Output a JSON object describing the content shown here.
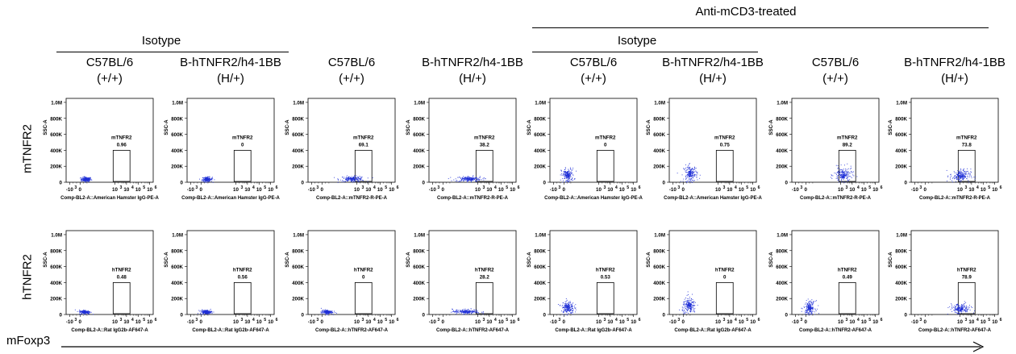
{
  "top_title": "Anti-mCD3-treated",
  "group_labels": [
    "Isotype",
    "Isotype"
  ],
  "column_headers": [
    {
      "strain": "C57BL/6",
      "genotype": "(+/+)"
    },
    {
      "strain": "B-hTNFR2/h4-1BB",
      "genotype": "(H/+)"
    },
    {
      "strain": "C57BL/6",
      "genotype": "(+/+)"
    },
    {
      "strain": "B-hTNFR2/h4-1BB",
      "genotype": "(H/+)"
    },
    {
      "strain": "C57BL/6",
      "genotype": "(+/+)"
    },
    {
      "strain": "B-hTNFR2/h4-1BB",
      "genotype": "(H/+)"
    },
    {
      "strain": "C57BL/6",
      "genotype": "(+/+)"
    },
    {
      "strain": "B-hTNFR2/h4-1BB",
      "genotype": "(H/+)"
    }
  ],
  "row_labels": [
    "mTNFR2",
    "hTNFR2"
  ],
  "x_axis_label": "mFoxp3",
  "colors": {
    "dots": "#1f2fd6",
    "axis": "#000000",
    "gate": "#000000"
  },
  "chart_data": {
    "type": "scatter",
    "ylabel": "SSC-A",
    "yticks": [
      "0",
      "200K",
      "400K",
      "600K",
      "800K",
      "1.0M"
    ],
    "xticks": [
      "-10",
      "0",
      "10",
      "10",
      "10",
      "10"
    ],
    "xtick_superscripts": [
      "3",
      "",
      "3",
      "4",
      "5",
      "6"
    ],
    "panels": [
      {
        "row": "mTNFR2",
        "gate": "mTNFR2",
        "value": "0.96",
        "xlabel": "Comp-BL2-A::American Hamster IgG-PE-A",
        "pop_x": 0.5,
        "pop_y": 40000,
        "spread_x": 0.45,
        "spread_y": 25000
      },
      {
        "row": "mTNFR2",
        "gate": "mTNFR2",
        "value": "0",
        "xlabel": "Comp-BL2-A::American Hamster IgG-PE-A",
        "pop_x": 0.5,
        "pop_y": 40000,
        "spread_x": 0.45,
        "spread_y": 25000
      },
      {
        "row": "mTNFR2",
        "gate": "mTNFR2",
        "value": "69.1",
        "xlabel": "Comp-BL2-A::mTNFR2-R-PE-A",
        "pop_x": 2.6,
        "pop_y": 45000,
        "spread_x": 1.1,
        "spread_y": 30000
      },
      {
        "row": "mTNFR2",
        "gate": "mTNFR2",
        "value": "38.2",
        "xlabel": "Comp-BL2-A::mTNFR2-R-PE-A",
        "pop_x": 2.2,
        "pop_y": 45000,
        "spread_x": 1.2,
        "spread_y": 30000
      },
      {
        "row": "mTNFR2",
        "gate": "mTNFR2",
        "value": "0",
        "xlabel": "Comp-BL2-A::American Hamster IgG-PE-A",
        "pop_x": 0.3,
        "pop_y": 90000,
        "spread_x": 0.55,
        "spread_y": 75000
      },
      {
        "row": "mTNFR2",
        "gate": "mTNFR2",
        "value": "0.75",
        "xlabel": "Comp-BL2-A::American Hamster IgG-PE-A",
        "pop_x": 0.6,
        "pop_y": 110000,
        "spread_x": 0.6,
        "spread_y": 90000
      },
      {
        "row": "mTNFR2",
        "gate": "mTNFR2",
        "value": "89.2",
        "xlabel": "Comp-BL2-A::mTNFR2-R-PE-A",
        "pop_x": 3.2,
        "pop_y": 95000,
        "spread_x": 0.8,
        "spread_y": 80000
      },
      {
        "row": "mTNFR2",
        "gate": "mTNFR2",
        "value": "73.8",
        "xlabel": "Comp-BL2-A::mTNFR2-R-PE-A",
        "pop_x": 3.0,
        "pop_y": 85000,
        "spread_x": 0.9,
        "spread_y": 70000
      },
      {
        "row": "hTNFR2",
        "gate": "hTNFR2",
        "value": "0.48",
        "xlabel": "Comp-BL2-A::Rat IgG2b-AF647-A",
        "pop_x": 0.4,
        "pop_y": 35000,
        "spread_x": 0.5,
        "spread_y": 22000
      },
      {
        "row": "hTNFR2",
        "gate": "hTNFR2",
        "value": "0.56",
        "xlabel": "Comp-BL2-A::Rat IgG2b-AF647-A",
        "pop_x": 0.4,
        "pop_y": 35000,
        "spread_x": 0.5,
        "spread_y": 22000
      },
      {
        "row": "hTNFR2",
        "gate": "hTNFR2",
        "value": "0",
        "xlabel": "Comp-BL2-A::hTNFR2-AF647-A",
        "pop_x": 0.4,
        "pop_y": 35000,
        "spread_x": 0.5,
        "spread_y": 22000
      },
      {
        "row": "hTNFR2",
        "gate": "hTNFR2",
        "value": "28.2",
        "xlabel": "Comp-BL2-A::hTNFR2-AF647-A",
        "pop_x": 2.0,
        "pop_y": 40000,
        "spread_x": 1.2,
        "spread_y": 26000
      },
      {
        "row": "hTNFR2",
        "gate": "hTNFR2",
        "value": "0.53",
        "xlabel": "Comp-BL2-A::Rat IgG2b-AF647-A",
        "pop_x": 0.3,
        "pop_y": 90000,
        "spread_x": 0.55,
        "spread_y": 75000
      },
      {
        "row": "hTNFR2",
        "gate": "hTNFR2",
        "value": "0",
        "xlabel": "Comp-BL2-A::Rat IgG2b-AF647-A",
        "pop_x": 0.5,
        "pop_y": 110000,
        "spread_x": 0.6,
        "spread_y": 90000
      },
      {
        "row": "hTNFR2",
        "gate": "hTNFR2",
        "value": "0.49",
        "xlabel": "Comp-BL2-A::hTNFR2-AF647-A",
        "pop_x": 0.3,
        "pop_y": 90000,
        "spread_x": 0.5,
        "spread_y": 70000
      },
      {
        "row": "hTNFR2",
        "gate": "hTNFR2",
        "value": "78.9",
        "xlabel": "Comp-BL2-A::hTNFR2-AF647-A",
        "pop_x": 3.0,
        "pop_y": 75000,
        "spread_x": 0.9,
        "spread_y": 55000
      }
    ]
  }
}
